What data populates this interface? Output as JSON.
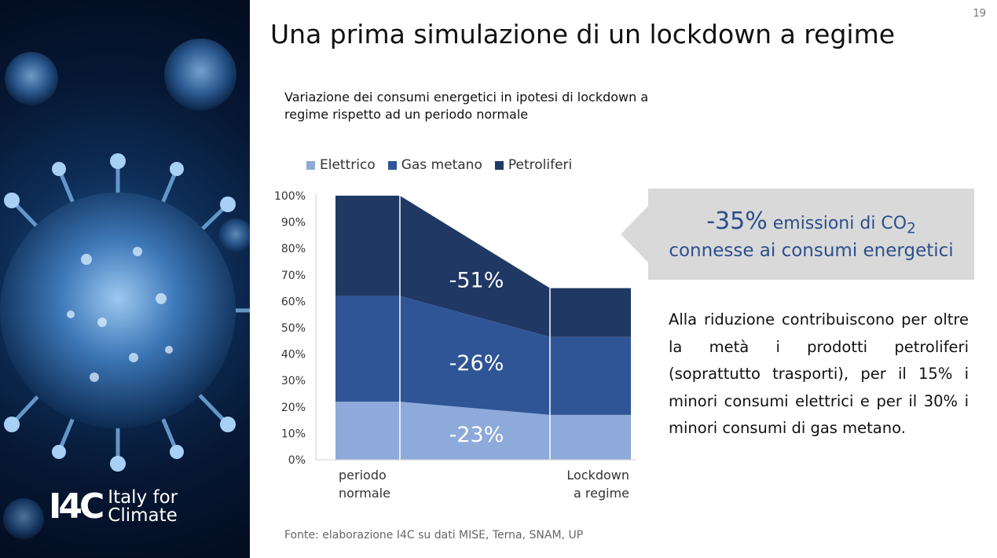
{
  "page_number": "19",
  "slide_title": "Una prima simulazione di un lockdown a regime",
  "chart_title": "Variazione dei consumi energetici in ipotesi di lockdown a regime rispetto ad un periodo normale",
  "callout": {
    "percent": "-35%",
    "line1_text": " emissioni di CO",
    "line1_subscript": "2",
    "line2": "connesse ai consumi energetici"
  },
  "body_text": "Alla riduzione contribuiscono per oltre la metà i prodotti petroliferi (soprattutto trasporti), per il 15% i minori consumi elettrici e per il 30% i minori consumi di gas metano.",
  "source": "Fonte: elaborazione I4C su dati MISE, Terna, SNAM, UP",
  "logo": {
    "mark": "I4C",
    "line1": "Italy for",
    "line2": "Climate"
  },
  "colors": {
    "elettrico": "#8eaadb",
    "gas_metano": "#2f5597",
    "petroliferi": "#203864",
    "callout_bg": "#d9d9d9",
    "callout_text": "#2b4f8c"
  },
  "chart_data": {
    "type": "area",
    "stacked": true,
    "x": [
      "periodo normale",
      "Lockdown a regime"
    ],
    "x_tick_lines": [
      [
        "periodo",
        "normale"
      ],
      [
        "Lockdown",
        "a regime"
      ]
    ],
    "series": [
      {
        "name": "Elettrico",
        "values": [
          22,
          17
        ],
        "change_label": "-23%",
        "color": "#8eaadb"
      },
      {
        "name": "Gas metano",
        "values": [
          40,
          29.5
        ],
        "change_label": "-26%",
        "color": "#2f5597"
      },
      {
        "name": "Petroliferi",
        "values": [
          38,
          18.5
        ],
        "change_label": "-51%",
        "color": "#203864"
      }
    ],
    "ylim": [
      0,
      100
    ],
    "yticks": [
      0,
      10,
      20,
      30,
      40,
      50,
      60,
      70,
      80,
      90,
      100
    ],
    "ytick_labels": [
      "0%",
      "10%",
      "20%",
      "30%",
      "40%",
      "50%",
      "60%",
      "70%",
      "80%",
      "90%",
      "100%"
    ],
    "grid": false,
    "legend_position": "top"
  }
}
